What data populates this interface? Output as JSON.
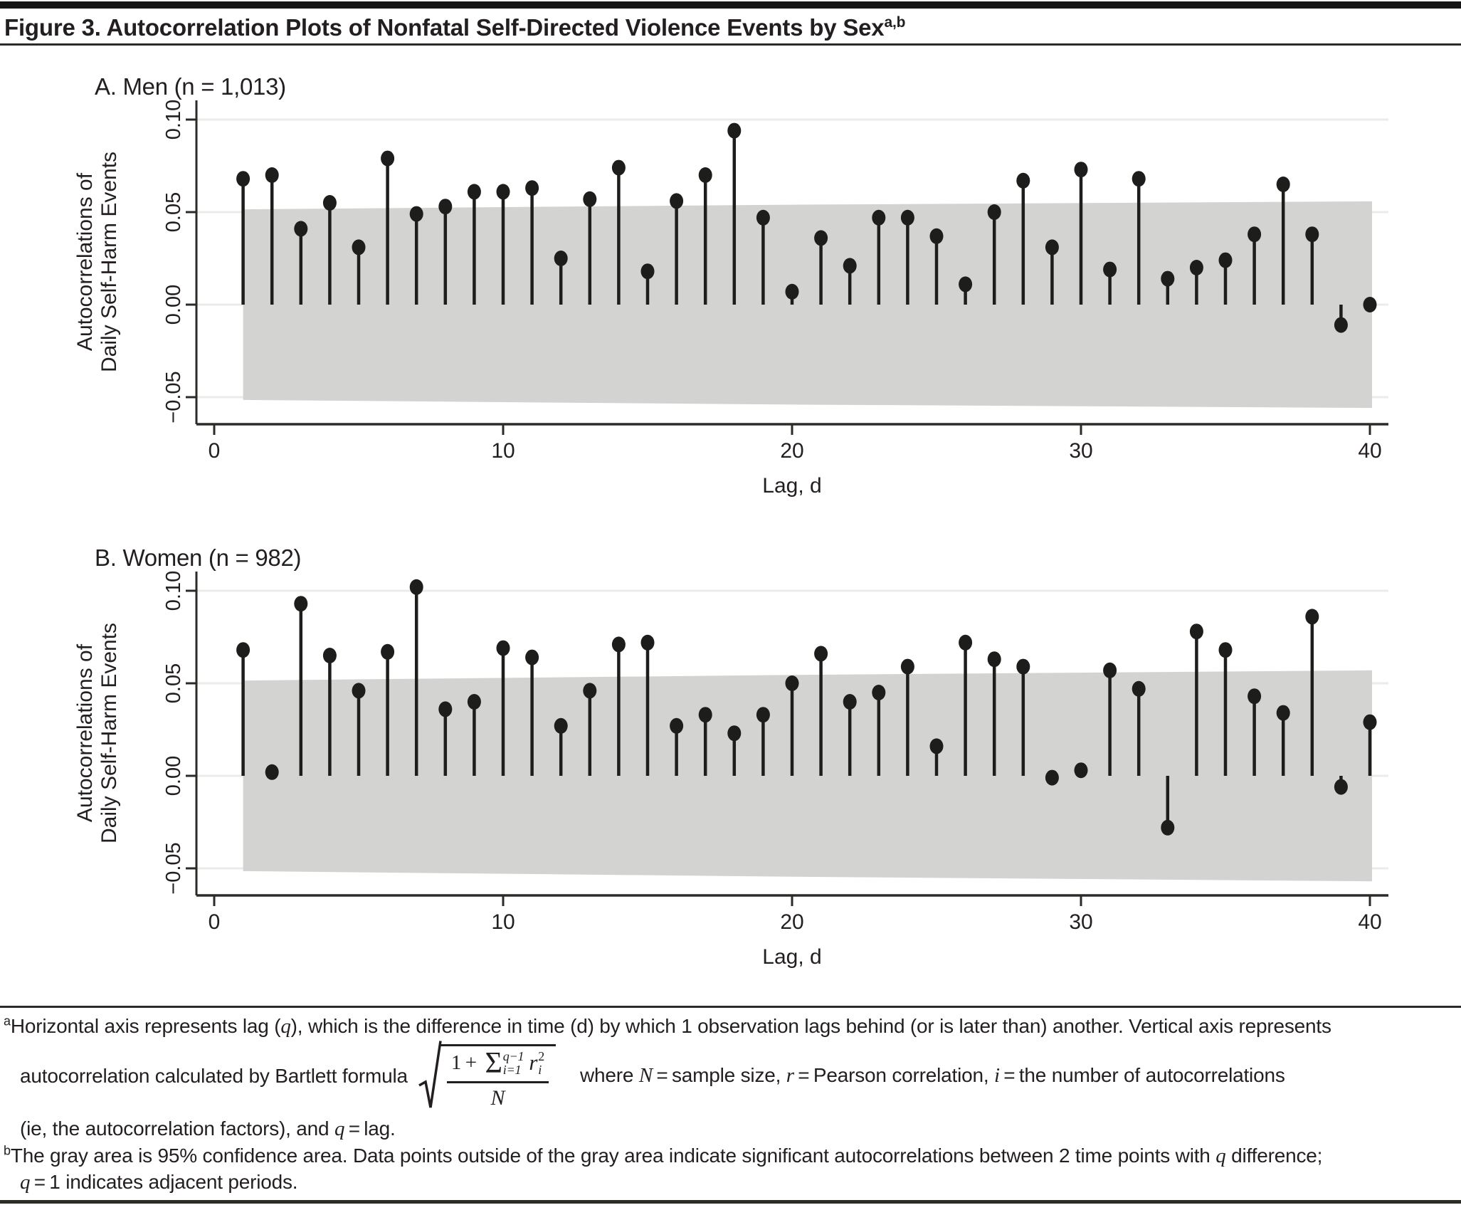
{
  "header": {
    "title": "Figure 3. Autocorrelation Plots of Nonfatal Self-Directed Violence Events by Sex",
    "title_superscript": "a,b"
  },
  "colors": {
    "text": "#231f20",
    "stem": "#1d1d1b",
    "band": "#d3d3d2",
    "grid": "#ebebe9",
    "axis": "#2b2b28"
  },
  "chart_data": [
    {
      "type": "stem",
      "panel": "A",
      "title": "A. Men (n = 1,013)",
      "xlabel": "Lag, d",
      "ylabel_line1": "Autocorrelations of",
      "ylabel_line2": "Daily Self-Harm Events",
      "xlim": [
        0,
        41.5
      ],
      "ylim": [
        -0.065,
        0.11
      ],
      "grid": "horizontal-light",
      "legend": "none",
      "xticks": [
        {
          "v": 0,
          "label": "0"
        },
        {
          "v": 10,
          "label": "10"
        },
        {
          "v": 20,
          "label": "20"
        },
        {
          "v": 30,
          "label": "30"
        },
        {
          "v": 40,
          "label": "40"
        }
      ],
      "yticks": [
        {
          "v": 0.1,
          "label": "0.10"
        },
        {
          "v": 0.05,
          "label": "0.05"
        },
        {
          "v": 0.0,
          "label": "0.00"
        },
        {
          "v": -0.05,
          "label": "−0.05"
        }
      ],
      "x": [
        1,
        2,
        3,
        4,
        5,
        6,
        7,
        8,
        9,
        10,
        11,
        12,
        13,
        14,
        15,
        16,
        17,
        18,
        19,
        20,
        21,
        22,
        23,
        24,
        25,
        26,
        27,
        28,
        29,
        30,
        31,
        32,
        33,
        34,
        35,
        36,
        37,
        38,
        39,
        40
      ],
      "values": [
        0.068,
        0.07,
        0.041,
        0.055,
        0.031,
        0.079,
        0.049,
        0.053,
        0.061,
        0.061,
        0.063,
        0.025,
        0.057,
        0.074,
        0.018,
        0.056,
        0.07,
        0.094,
        0.047,
        0.007,
        0.036,
        0.021,
        0.047,
        0.047,
        0.037,
        0.011,
        0.05,
        0.067,
        0.031,
        0.073,
        0.019,
        0.068,
        0.014,
        0.02,
        0.024,
        0.038,
        0.065,
        0.038,
        -0.011,
        0.0
      ],
      "confidence_band": {
        "meaning": "95% confidence area",
        "lags": [
          1,
          20,
          40
        ],
        "top": [
          0.0515,
          0.054,
          0.0558
        ],
        "bottom": [
          -0.0515,
          -0.054,
          -0.0558
        ]
      }
    },
    {
      "type": "stem",
      "panel": "B",
      "title": "B. Women (n = 982)",
      "xlabel": "Lag, d",
      "ylabel_line1": "Autocorrelations of",
      "ylabel_line2": "Daily Self-Harm Events",
      "xlim": [
        0,
        41.5
      ],
      "ylim": [
        -0.065,
        0.11
      ],
      "grid": "horizontal-light",
      "legend": "none",
      "xticks": [
        {
          "v": 0,
          "label": "0"
        },
        {
          "v": 10,
          "label": "10"
        },
        {
          "v": 20,
          "label": "20"
        },
        {
          "v": 30,
          "label": "30"
        },
        {
          "v": 40,
          "label": "40"
        }
      ],
      "yticks": [
        {
          "v": 0.1,
          "label": "0.10"
        },
        {
          "v": 0.05,
          "label": "0.05"
        },
        {
          "v": 0.0,
          "label": "0.00"
        },
        {
          "v": -0.05,
          "label": "−0.05"
        }
      ],
      "x": [
        1,
        2,
        3,
        4,
        5,
        6,
        7,
        8,
        9,
        10,
        11,
        12,
        13,
        14,
        15,
        16,
        17,
        18,
        19,
        20,
        21,
        22,
        23,
        24,
        25,
        26,
        27,
        28,
        29,
        30,
        31,
        32,
        33,
        34,
        35,
        36,
        37,
        38,
        39,
        40
      ],
      "values": [
        0.068,
        0.002,
        0.093,
        0.065,
        0.046,
        0.067,
        0.102,
        0.036,
        0.04,
        0.069,
        0.064,
        0.027,
        0.046,
        0.071,
        0.072,
        0.027,
        0.033,
        0.023,
        0.033,
        0.05,
        0.066,
        0.04,
        0.045,
        0.059,
        0.016,
        0.072,
        0.063,
        0.059,
        -0.001,
        0.003,
        0.057,
        0.047,
        -0.028,
        0.078,
        0.068,
        0.043,
        0.034,
        0.086,
        -0.006,
        0.029
      ],
      "confidence_band": {
        "meaning": "95% confidence area",
        "lags": [
          1,
          20,
          40
        ],
        "top": [
          0.0515,
          0.0545,
          0.057
        ],
        "bottom": [
          -0.0515,
          -0.0545,
          -0.057
        ]
      }
    }
  ],
  "footnotes": {
    "a_marker": "a",
    "b_marker": "b",
    "line1": [
      {
        "t": "Horizontal axis represents lag ("
      },
      {
        "t": "q",
        "i": 1
      },
      {
        "t": "), which is the difference in time (d) by which 1 observation lags behind (or is later than) another. Vertical axis represents"
      }
    ],
    "line2_pre": [
      {
        "t": "autocorrelation calculated by Bartlett formula"
      }
    ],
    "line2_post": [
      {
        "t": "where "
      },
      {
        "t": "N",
        "i": 1
      },
      {
        "t": " = sample size, "
      },
      {
        "t": "r",
        "i": 1
      },
      {
        "t": " = Pearson correlation, "
      },
      {
        "t": "i",
        "i": 1
      },
      {
        "t": " = the number of autocorrelations"
      }
    ],
    "line3": [
      {
        "t": "(ie, the autocorrelation factors), and "
      },
      {
        "t": "q",
        "i": 1
      },
      {
        "t": " = lag."
      }
    ],
    "line4": [
      {
        "t": "The gray area is 95% confidence area. Data points outside of the gray area indicate significant autocorrelations between 2 time points with "
      },
      {
        "t": "q",
        "i": 1
      },
      {
        "t": " difference;"
      }
    ],
    "line5": [
      {
        "t": "q",
        "i": 1
      },
      {
        "t": " = 1 indicates adjacent periods."
      }
    ],
    "formula": {
      "lead": "1 + ",
      "sigma": "Σ",
      "sigma_sup": "q−1",
      "sigma_sub": "i=1",
      "var": "r",
      "var_sup": "2",
      "var_sub": "i",
      "denominator": "N"
    }
  }
}
